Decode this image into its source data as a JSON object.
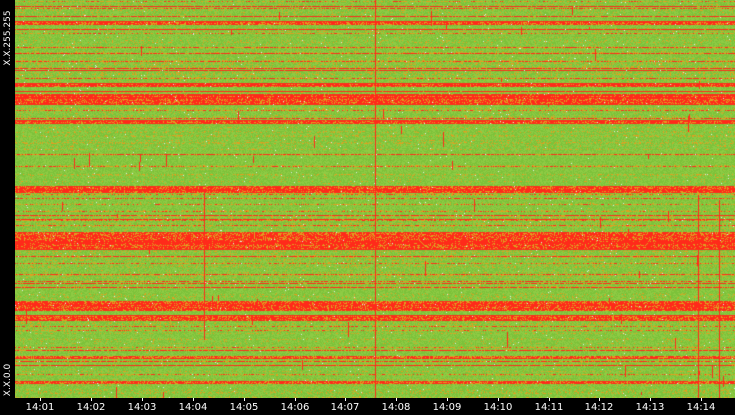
{
  "chart_data": {
    "type": "heatmap",
    "title": "",
    "xlabel": "",
    "ylabel": "",
    "x_tick_labels": [
      "14:01",
      "14:02",
      "14:03",
      "14:04",
      "14:05",
      "14:06",
      "14:07",
      "14:08",
      "14:09",
      "14:10",
      "14:11",
      "14:12",
      "14:13",
      "14:14"
    ],
    "xlim": [
      "14:00:30",
      "14:14:40"
    ],
    "y_tick_labels": [
      "X.X.255.255",
      "X.X.0.0"
    ],
    "ylim": [
      "X.X.0.0",
      "X.X.255.255"
    ],
    "grid": false,
    "legend": "none",
    "colors": {
      "background": "#000000",
      "low": "#7cc23a",
      "low_alt": "#8ecb44",
      "mid": "#e0a020",
      "high": "#ff2a1a",
      "text": "#ffffff"
    },
    "seed": 20240517
  }
}
